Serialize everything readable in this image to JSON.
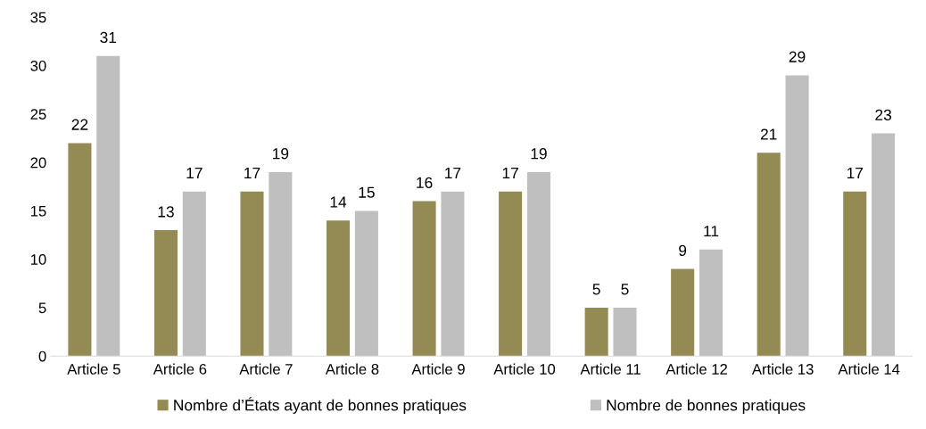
{
  "chart_data": {
    "type": "bar",
    "categories": [
      "Article 5",
      "Article 6",
      "Article 7",
      "Article 8",
      "Article 9",
      "Article 10",
      "Article 11",
      "Article 12",
      "Article 13",
      "Article 14"
    ],
    "series": [
      {
        "name": "Nombre d’États ayant de bonnes pratiques",
        "color": "#948a54",
        "values": [
          22,
          13,
          17,
          14,
          16,
          17,
          5,
          9,
          21,
          17
        ]
      },
      {
        "name": "Nombre de bonnes pratiques",
        "color": "#bfbfbf",
        "values": [
          31,
          17,
          19,
          15,
          17,
          19,
          5,
          11,
          29,
          23
        ]
      }
    ],
    "ylim": [
      0,
      35
    ],
    "yticks": [
      0,
      5,
      10,
      15,
      20,
      25,
      30,
      35
    ],
    "data_labels": true,
    "legend": "bottom",
    "grid": false
  }
}
